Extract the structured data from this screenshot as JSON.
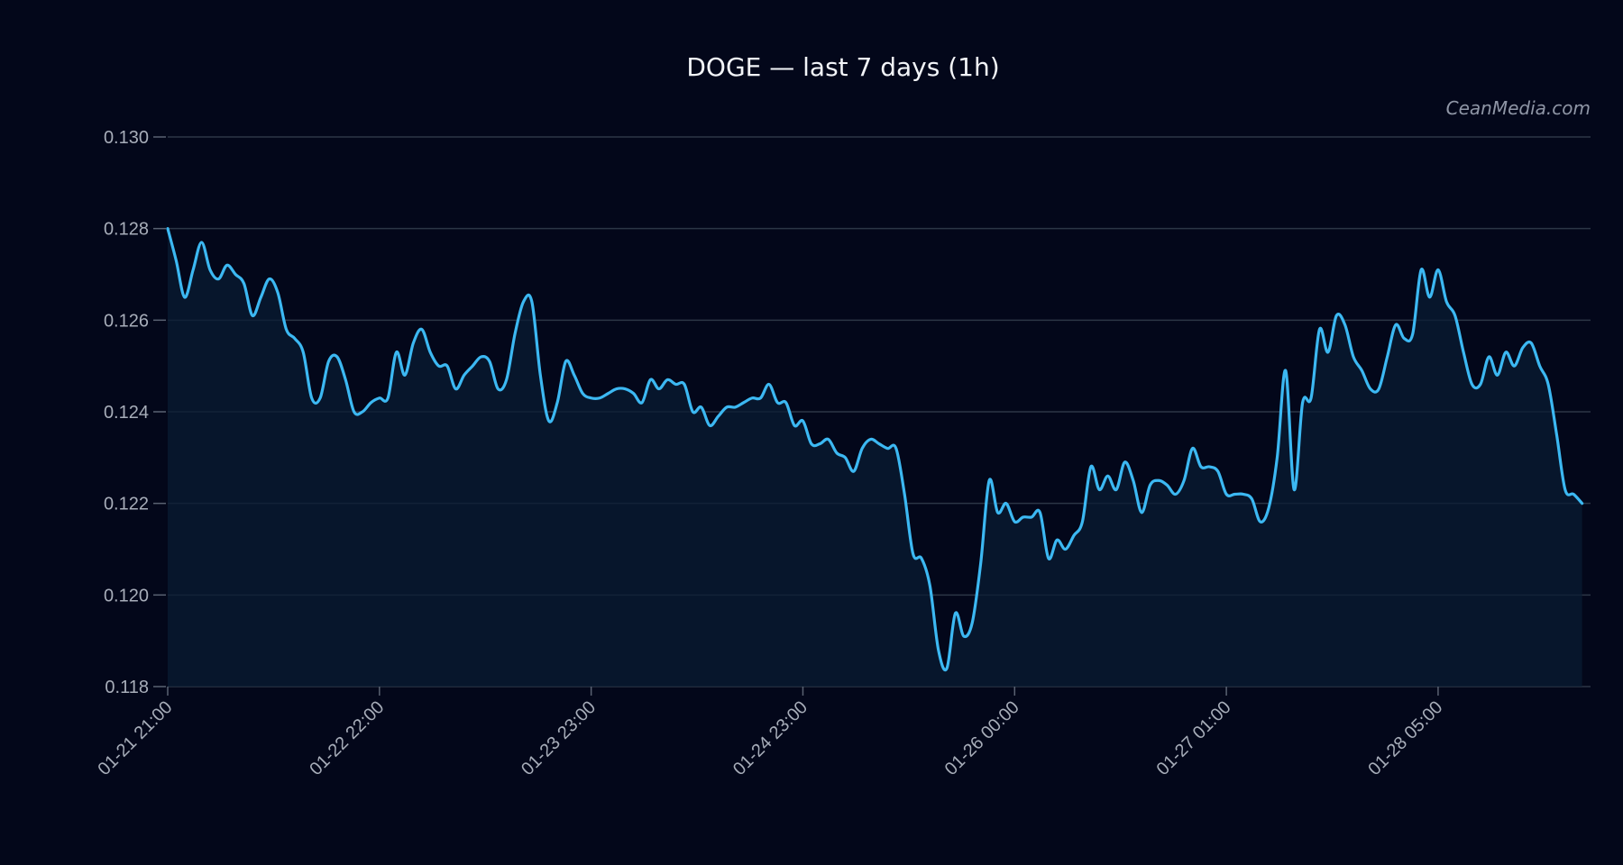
{
  "chart_data": {
    "type": "area",
    "title": "DOGE — last 7 days (1h)",
    "watermark": "CeanMedia.com",
    "xlabel": "",
    "ylabel": "",
    "ylim": [
      0.118,
      0.13
    ],
    "yticks": [
      0.13,
      0.128,
      0.126,
      0.124,
      0.122,
      0.12,
      0.118
    ],
    "ytick_labels": [
      "0.130",
      "0.128",
      "0.126",
      "0.124",
      "0.122",
      "0.120",
      "0.118"
    ],
    "xlim": [
      0,
      168
    ],
    "xticks": [
      {
        "index": 0,
        "label": "01-21 21:00"
      },
      {
        "index": 25,
        "label": "01-22 22:00"
      },
      {
        "index": 50,
        "label": "01-23 23:00"
      },
      {
        "index": 75,
        "label": "01-24 23:00"
      },
      {
        "index": 100,
        "label": "01-26 00:00"
      },
      {
        "index": 125,
        "label": "01-27 01:00"
      },
      {
        "index": 150,
        "label": "01-28 05:00"
      }
    ],
    "grid": true,
    "colors": {
      "background": "#03071a",
      "line": "#3cb8f2",
      "area": "#0a1c33"
    },
    "series": [
      {
        "values": [
          0.128,
          0.1273,
          0.1265,
          0.1271,
          0.1277,
          0.1271,
          0.1269,
          0.1272,
          0.127,
          0.1268,
          0.1261,
          0.1265,
          0.1269,
          0.1266,
          0.1258,
          0.1256,
          0.1253,
          0.1243,
          0.1243,
          0.1251,
          0.1252,
          0.1247,
          0.124,
          0.124,
          0.1242,
          0.1243,
          0.1243,
          0.1253,
          0.1248,
          0.1255,
          0.1258,
          0.1253,
          0.125,
          0.125,
          0.1245,
          0.1248,
          0.125,
          0.1252,
          0.1251,
          0.1245,
          0.1247,
          0.1257,
          0.1264,
          0.1264,
          0.1248,
          0.1238,
          0.1242,
          0.1251,
          0.1248,
          0.1244,
          0.1243,
          0.1243,
          0.1244,
          0.1245,
          0.1245,
          0.1244,
          0.1242,
          0.1247,
          0.1245,
          0.1247,
          0.1246,
          0.1246,
          0.124,
          0.1241,
          0.1237,
          0.1239,
          0.1241,
          0.1241,
          0.1242,
          0.1243,
          0.1243,
          0.1246,
          0.1242,
          0.1242,
          0.1237,
          0.1238,
          0.1233,
          0.1233,
          0.1234,
          0.1231,
          0.123,
          0.1227,
          0.1232,
          0.1234,
          0.1233,
          0.1232,
          0.1232,
          0.1222,
          0.1209,
          0.1208,
          0.1202,
          0.1188,
          0.1184,
          0.1196,
          0.1191,
          0.1194,
          0.1207,
          0.1225,
          0.1218,
          0.122,
          0.1216,
          0.1217,
          0.1217,
          0.1218,
          0.1208,
          0.1212,
          0.121,
          0.1213,
          0.1216,
          0.1228,
          0.1223,
          0.1226,
          0.1223,
          0.1229,
          0.1225,
          0.1218,
          0.1224,
          0.1225,
          0.1224,
          0.1222,
          0.1225,
          0.1232,
          0.1228,
          0.1228,
          0.1227,
          0.1222,
          0.1222,
          0.1222,
          0.1221,
          0.1216,
          0.1219,
          0.123,
          0.1249,
          0.1223,
          0.1242,
          0.1243,
          0.1258,
          0.1253,
          0.1261,
          0.1259,
          0.1252,
          0.1249,
          0.1245,
          0.1245,
          0.1252,
          0.1259,
          0.1256,
          0.1257,
          0.1271,
          0.1265,
          0.1271,
          0.1264,
          0.1261,
          0.1253,
          0.1246,
          0.1246,
          0.1252,
          0.1248,
          0.1253,
          0.125,
          0.1254,
          0.1255,
          0.125,
          0.1246,
          0.1235,
          0.1223,
          0.1222,
          0.122
        ]
      }
    ]
  }
}
